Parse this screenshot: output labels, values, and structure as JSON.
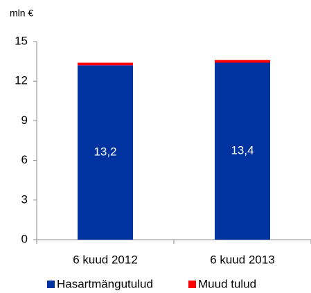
{
  "chart_data": {
    "type": "stacked_bar",
    "unit_label": "mln €",
    "categories": [
      "6 kuud 2012",
      "6 kuud 2013"
    ],
    "series": [
      {
        "name": "Hasartmängutulud",
        "color": "#0033a0",
        "values": [
          13.2,
          13.4
        ],
        "value_labels": [
          "13,2",
          "13,4"
        ]
      },
      {
        "name": "Muud tulud",
        "color": "#ff0000",
        "values": [
          0.2,
          0.2
        ]
      }
    ],
    "ylim": [
      0,
      15
    ],
    "yticks": [
      0,
      3,
      6,
      9,
      12,
      15
    ],
    "legend": "bottom"
  }
}
